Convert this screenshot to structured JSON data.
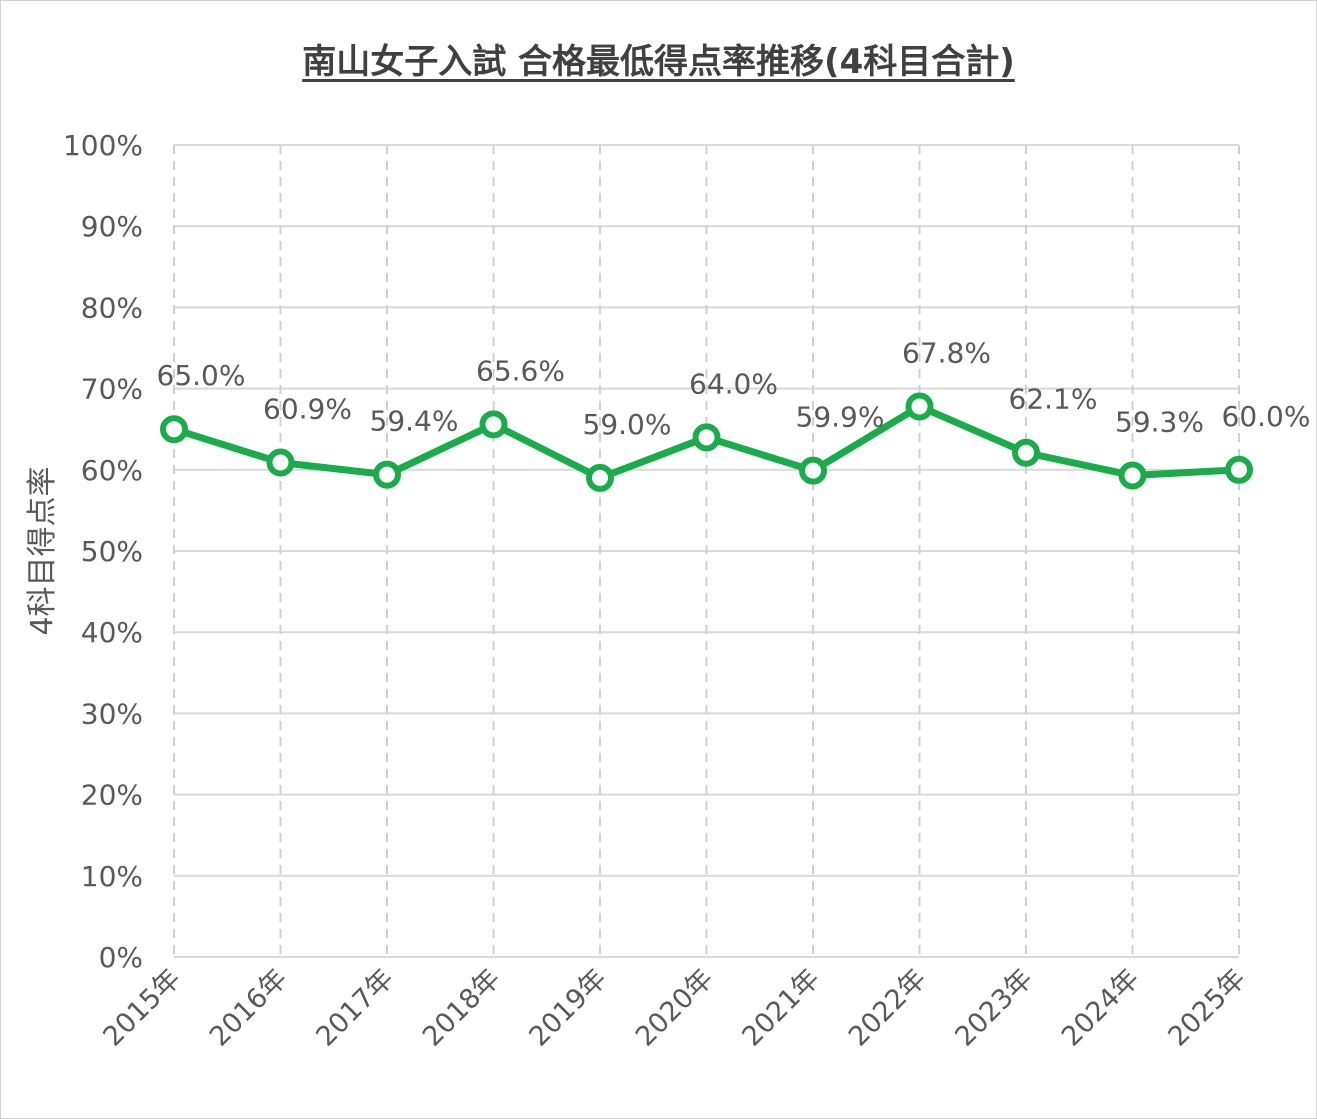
{
  "chart_data": {
    "type": "line",
    "title": "南山女子入試 合格最低得点率推移(4科目合計)",
    "ylabel": "4科目得点率",
    "xlabel": "",
    "categories": [
      "2015年",
      "2016年",
      "2017年",
      "2018年",
      "2019年",
      "2020年",
      "2021年",
      "2022年",
      "2023年",
      "2024年",
      "2025年"
    ],
    "series": [
      {
        "values": [
          65.0,
          60.9,
          59.4,
          65.6,
          59.0,
          64.0,
          59.9,
          67.8,
          62.1,
          59.3,
          60.0
        ],
        "labels": [
          "65.0%",
          "60.9%",
          "59.4%",
          "65.6%",
          "59.0%",
          "64.0%",
          "59.9%",
          "67.8%",
          "62.1%",
          "59.3%",
          "60.0%"
        ]
      }
    ],
    "ylim": [
      0,
      100
    ],
    "y_ticks": [
      "0%",
      "10%",
      "20%",
      "30%",
      "40%",
      "50%",
      "60%",
      "70%",
      "80%",
      "90%",
      "100%"
    ],
    "grid": true,
    "legend": "none",
    "line_color": "#1aab4b",
    "marker_fill": "#ffffff"
  }
}
